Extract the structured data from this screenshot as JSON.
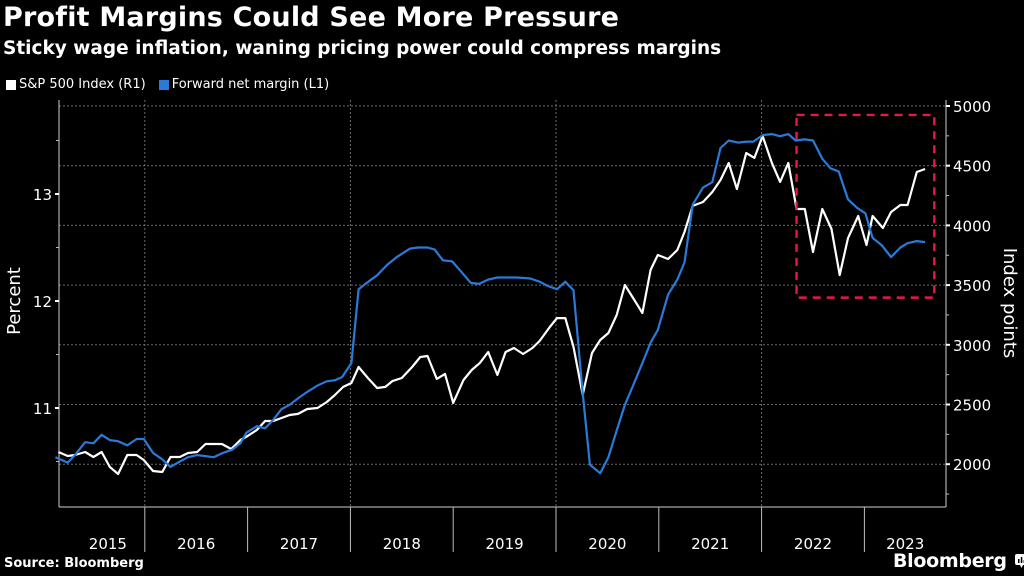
{
  "header": {
    "title": "Profit Margins Could See More Pressure",
    "subtitle": "Sticky wage inflation, waning pricing power could compress margins"
  },
  "footer": {
    "source": "Source: Bloomberg",
    "brand": "Bloomberg"
  },
  "colors": {
    "background": "#000000",
    "sp500": "#ffffff",
    "margin": "#2a7ad8",
    "highlight_box": "#e8174a",
    "grid": "#6b6b6b"
  },
  "chart_data": {
    "type": "line",
    "title": "Profit Margins Could See More Pressure",
    "subtitle": "Sticky wage inflation, waning pricing power could compress margins",
    "x_unit": "decimal year",
    "x_range": [
      2015.17,
      2023.8
    ],
    "x_tick_labels": [
      "2015",
      "2016",
      "2017",
      "2018",
      "2019",
      "2020",
      "2021",
      "2022",
      "2023"
    ],
    "x_boundaries": [
      2016,
      2017,
      2018,
      2019,
      2020,
      2021,
      2022,
      2023
    ],
    "x_grid": [
      2016,
      2018,
      2020,
      2022
    ],
    "y_left": {
      "label": "Percent",
      "ticks": [
        11,
        12,
        13
      ],
      "minor_ticks": [
        10.5,
        11.5,
        12.5,
        13.5
      ],
      "range": [
        10.07,
        13.88
      ]
    },
    "y_right": {
      "label": "Index points",
      "ticks": [
        2000,
        2500,
        3000,
        3500,
        4000,
        4500,
        5000
      ],
      "minor_ticks": [
        1750,
        2250,
        2750,
        3250,
        3750,
        4250,
        4750
      ],
      "range": [
        1640,
        5050
      ]
    },
    "grid": "horizontal dotted at right-axis ticks; vertical dotted every two years",
    "legend_position": "top-left",
    "legend": [
      "S&P 500 Index (R1)",
      "Forward net margin (L1)"
    ],
    "highlight_box": {
      "style": "dashed red rectangle",
      "x_range": [
        2022.34,
        2023.68
      ],
      "y_right_range": [
        3395,
        4925
      ]
    },
    "series": [
      {
        "name": "S&P 500 Index (R1)",
        "axis": "right",
        "color": "#ffffff",
        "points": [
          [
            2015.16,
            2102
          ],
          [
            2015.25,
            2069
          ],
          [
            2015.32,
            2077
          ],
          [
            2015.42,
            2102
          ],
          [
            2015.5,
            2060
          ],
          [
            2015.58,
            2102
          ],
          [
            2015.66,
            1977
          ],
          [
            2015.74,
            1918
          ],
          [
            2015.83,
            2077
          ],
          [
            2015.92,
            2077
          ],
          [
            2015.99,
            2035
          ],
          [
            2016.08,
            1943
          ],
          [
            2016.17,
            1935
          ],
          [
            2016.25,
            2060
          ],
          [
            2016.34,
            2060
          ],
          [
            2016.42,
            2094
          ],
          [
            2016.51,
            2102
          ],
          [
            2016.59,
            2169
          ],
          [
            2016.67,
            2169
          ],
          [
            2016.75,
            2169
          ],
          [
            2016.84,
            2127
          ],
          [
            2016.93,
            2203
          ],
          [
            2017.0,
            2236
          ],
          [
            2017.09,
            2287
          ],
          [
            2017.17,
            2362
          ],
          [
            2017.25,
            2362
          ],
          [
            2017.33,
            2387
          ],
          [
            2017.41,
            2412
          ],
          [
            2017.49,
            2421
          ],
          [
            2017.58,
            2462
          ],
          [
            2017.68,
            2471
          ],
          [
            2017.77,
            2521
          ],
          [
            2017.85,
            2580
          ],
          [
            2017.93,
            2647
          ],
          [
            2018.01,
            2680
          ],
          [
            2018.08,
            2814
          ],
          [
            2018.17,
            2722
          ],
          [
            2018.26,
            2638
          ],
          [
            2018.34,
            2647
          ],
          [
            2018.41,
            2697
          ],
          [
            2018.5,
            2722
          ],
          [
            2018.6,
            2814
          ],
          [
            2018.68,
            2898
          ],
          [
            2018.75,
            2906
          ],
          [
            2018.84,
            2714
          ],
          [
            2018.92,
            2756
          ],
          [
            2019.0,
            2513
          ],
          [
            2019.1,
            2705
          ],
          [
            2019.18,
            2789
          ],
          [
            2019.26,
            2848
          ],
          [
            2019.34,
            2940
          ],
          [
            2019.43,
            2747
          ],
          [
            2019.51,
            2940
          ],
          [
            2019.59,
            2973
          ],
          [
            2019.68,
            2923
          ],
          [
            2019.77,
            2973
          ],
          [
            2019.84,
            3032
          ],
          [
            2019.94,
            3149
          ],
          [
            2020.01,
            3224
          ],
          [
            2020.09,
            3224
          ],
          [
            2020.17,
            2982
          ],
          [
            2020.26,
            2580
          ],
          [
            2020.35,
            2931
          ],
          [
            2020.43,
            3040
          ],
          [
            2020.51,
            3099
          ],
          [
            2020.59,
            3250
          ],
          [
            2020.67,
            3501
          ],
          [
            2020.75,
            3392
          ],
          [
            2020.84,
            3266
          ],
          [
            2020.92,
            3627
          ],
          [
            2020.99,
            3752
          ],
          [
            2021.09,
            3719
          ],
          [
            2021.18,
            3794
          ],
          [
            2021.25,
            3945
          ],
          [
            2021.33,
            4163
          ],
          [
            2021.43,
            4196
          ],
          [
            2021.52,
            4280
          ],
          [
            2021.6,
            4380
          ],
          [
            2021.68,
            4523
          ],
          [
            2021.76,
            4305
          ],
          [
            2021.85,
            4606
          ],
          [
            2021.93,
            4565
          ],
          [
            2022.01,
            4749
          ],
          [
            2022.1,
            4523
          ],
          [
            2022.18,
            4364
          ],
          [
            2022.26,
            4523
          ],
          [
            2022.34,
            4137
          ],
          [
            2022.42,
            4137
          ],
          [
            2022.5,
            3777
          ],
          [
            2022.59,
            4137
          ],
          [
            2022.68,
            3970
          ],
          [
            2022.76,
            3585
          ],
          [
            2022.84,
            3894
          ],
          [
            2022.94,
            4079
          ],
          [
            2023.02,
            3836
          ],
          [
            2023.08,
            4079
          ],
          [
            2023.18,
            3978
          ],
          [
            2023.26,
            4112
          ],
          [
            2023.35,
            4171
          ],
          [
            2023.42,
            4171
          ],
          [
            2023.51,
            4447
          ],
          [
            2023.59,
            4472
          ]
        ]
      },
      {
        "name": "Forward net margin (L1)",
        "axis": "left",
        "color": "#2a7ad8",
        "points": [
          [
            2015.13,
            10.54
          ],
          [
            2015.25,
            10.49
          ],
          [
            2015.32,
            10.56
          ],
          [
            2015.42,
            10.68
          ],
          [
            2015.5,
            10.67
          ],
          [
            2015.58,
            10.75
          ],
          [
            2015.66,
            10.7
          ],
          [
            2015.74,
            10.69
          ],
          [
            2015.83,
            10.65
          ],
          [
            2015.92,
            10.71
          ],
          [
            2015.99,
            10.71
          ],
          [
            2016.08,
            10.58
          ],
          [
            2016.17,
            10.52
          ],
          [
            2016.25,
            10.45
          ],
          [
            2016.34,
            10.5
          ],
          [
            2016.42,
            10.54
          ],
          [
            2016.51,
            10.56
          ],
          [
            2016.59,
            10.55
          ],
          [
            2016.67,
            10.54
          ],
          [
            2016.76,
            10.58
          ],
          [
            2016.85,
            10.61
          ],
          [
            2016.93,
            10.67
          ],
          [
            2016.99,
            10.77
          ],
          [
            2017.09,
            10.83
          ],
          [
            2017.17,
            10.81
          ],
          [
            2017.25,
            10.89
          ],
          [
            2017.33,
            10.99
          ],
          [
            2017.41,
            11.03
          ],
          [
            2017.49,
            11.09
          ],
          [
            2017.58,
            11.15
          ],
          [
            2017.68,
            11.21
          ],
          [
            2017.77,
            11.25
          ],
          [
            2017.85,
            11.26
          ],
          [
            2017.92,
            11.29
          ],
          [
            2018.01,
            11.42
          ],
          [
            2018.08,
            12.11
          ],
          [
            2018.16,
            12.17
          ],
          [
            2018.26,
            12.24
          ],
          [
            2018.36,
            12.34
          ],
          [
            2018.45,
            12.41
          ],
          [
            2018.58,
            12.49
          ],
          [
            2018.66,
            12.5
          ],
          [
            2018.75,
            12.5
          ],
          [
            2018.82,
            12.48
          ],
          [
            2018.9,
            12.38
          ],
          [
            2018.99,
            12.37
          ],
          [
            2019.09,
            12.26
          ],
          [
            2019.17,
            12.17
          ],
          [
            2019.25,
            12.16
          ],
          [
            2019.34,
            12.2
          ],
          [
            2019.43,
            12.22
          ],
          [
            2019.52,
            12.22
          ],
          [
            2019.62,
            12.22
          ],
          [
            2019.75,
            12.21
          ],
          [
            2019.84,
            12.18
          ],
          [
            2019.92,
            12.14
          ],
          [
            2020.01,
            12.11
          ],
          [
            2020.09,
            12.18
          ],
          [
            2020.17,
            12.1
          ],
          [
            2020.26,
            11.14
          ],
          [
            2020.33,
            10.47
          ],
          [
            2020.43,
            10.39
          ],
          [
            2020.51,
            10.54
          ],
          [
            2020.59,
            10.79
          ],
          [
            2020.67,
            11.03
          ],
          [
            2020.75,
            11.21
          ],
          [
            2020.84,
            11.42
          ],
          [
            2020.92,
            11.61
          ],
          [
            2020.99,
            11.73
          ],
          [
            2021.09,
            12.06
          ],
          [
            2021.18,
            12.2
          ],
          [
            2021.25,
            12.36
          ],
          [
            2021.33,
            12.9
          ],
          [
            2021.43,
            13.06
          ],
          [
            2021.52,
            13.11
          ],
          [
            2021.6,
            13.43
          ],
          [
            2021.68,
            13.5
          ],
          [
            2021.77,
            13.48
          ],
          [
            2021.86,
            13.49
          ],
          [
            2021.92,
            13.49
          ],
          [
            2022.01,
            13.55
          ],
          [
            2022.1,
            13.56
          ],
          [
            2022.18,
            13.54
          ],
          [
            2022.26,
            13.56
          ],
          [
            2022.33,
            13.5
          ],
          [
            2022.42,
            13.51
          ],
          [
            2022.5,
            13.5
          ],
          [
            2022.59,
            13.33
          ],
          [
            2022.67,
            13.24
          ],
          [
            2022.75,
            13.21
          ],
          [
            2022.84,
            12.95
          ],
          [
            2022.93,
            12.87
          ],
          [
            2023.01,
            12.82
          ],
          [
            2023.08,
            12.59
          ],
          [
            2023.17,
            12.52
          ],
          [
            2023.26,
            12.41
          ],
          [
            2023.35,
            12.5
          ],
          [
            2023.42,
            12.54
          ],
          [
            2023.51,
            12.56
          ],
          [
            2023.59,
            12.55
          ]
        ]
      }
    ]
  }
}
